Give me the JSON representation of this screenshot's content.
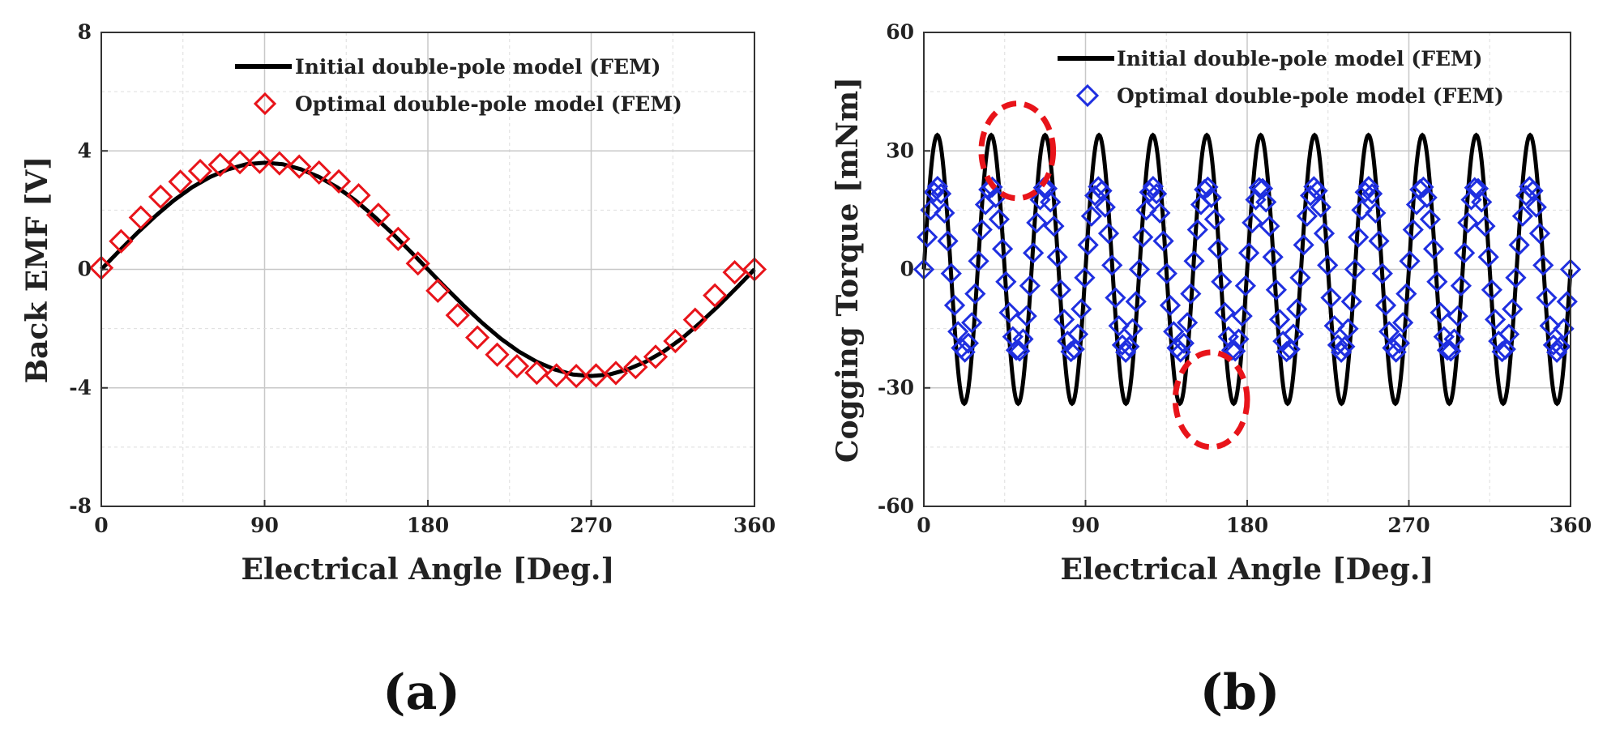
{
  "figure": {
    "caption_a": "(a)",
    "caption_b": "(b)"
  },
  "chart_data": [
    {
      "id": "a",
      "type": "line",
      "title": "",
      "xlabel": "Electrical Angle [Deg.]",
      "ylabel": "Back EMF [V]",
      "xlim": [
        0,
        360
      ],
      "ylim": [
        -8,
        8
      ],
      "xticks": [
        "0",
        "90",
        "180",
        "270",
        "360"
      ],
      "yticks": [
        "8",
        "4",
        "0",
        "-4",
        "-8"
      ],
      "grid": true,
      "legend_position": "top-right",
      "series": [
        {
          "name": "Initial double-pole model (FEM)",
          "style": "line",
          "color": "#000000",
          "x": [
            0,
            10,
            20,
            30,
            40,
            50,
            60,
            70,
            80,
            90,
            100,
            110,
            120,
            130,
            140,
            150,
            160,
            170,
            180,
            190,
            200,
            210,
            220,
            230,
            240,
            250,
            260,
            270,
            280,
            290,
            300,
            310,
            320,
            330,
            340,
            350,
            360
          ],
          "y": [
            0,
            0.63,
            1.24,
            1.81,
            2.33,
            2.77,
            3.12,
            3.38,
            3.55,
            3.6,
            3.55,
            3.38,
            3.12,
            2.77,
            2.33,
            1.81,
            1.24,
            0.63,
            0,
            -0.63,
            -1.24,
            -1.81,
            -2.33,
            -2.77,
            -3.12,
            -3.38,
            -3.55,
            -3.6,
            -3.55,
            -3.38,
            -3.12,
            -2.77,
            -2.33,
            -1.81,
            -1.24,
            -0.63,
            0
          ]
        },
        {
          "name": "Optimal double-pole model (FEM)",
          "style": "markers",
          "marker": "diamond",
          "color": "#e8141a",
          "x": [
            0,
            10.9,
            21.8,
            32.7,
            43.6,
            54.5,
            65.5,
            76.4,
            87.3,
            98.2,
            109.1,
            120,
            130.9,
            141.8,
            152.7,
            163.6,
            174.5,
            185.5,
            196.4,
            207.3,
            218.2,
            229.1,
            240,
            250.9,
            261.8,
            272.7,
            283.6,
            294.5,
            305.5,
            316.4,
            327.3,
            338.2,
            349.1,
            360
          ],
          "y": [
            0.05,
            0.95,
            1.75,
            2.45,
            2.96,
            3.32,
            3.53,
            3.62,
            3.63,
            3.58,
            3.47,
            3.27,
            2.97,
            2.5,
            1.84,
            1.03,
            0.2,
            -0.72,
            -1.55,
            -2.3,
            -2.88,
            -3.27,
            -3.49,
            -3.58,
            -3.6,
            -3.58,
            -3.5,
            -3.3,
            -2.95,
            -2.42,
            -1.7,
            -0.88,
            -0.1,
            0.0
          ]
        }
      ]
    },
    {
      "id": "b",
      "type": "line",
      "title": "",
      "xlabel": "Electrical Angle [Deg.]",
      "ylabel": "Cogging Torque [mNm]",
      "xlim": [
        0,
        360
      ],
      "ylim": [
        -60,
        60
      ],
      "xticks": [
        "0",
        "90",
        "180",
        "270",
        "360"
      ],
      "yticks": [
        "60",
        "30",
        "0",
        "-30",
        "-60"
      ],
      "grid": true,
      "legend_position": "top-right",
      "series": [
        {
          "name": "Initial double-pole model (FEM)",
          "style": "line",
          "color": "#000000",
          "amplitude": 34,
          "period": 30,
          "x": [
            0,
            7.5,
            15,
            22.5,
            30,
            37.5,
            45,
            52.5,
            60,
            67.5,
            75,
            82.5,
            90,
            97.5,
            105,
            112.5,
            120,
            127.5,
            135,
            142.5,
            150,
            157.5,
            165,
            172.5,
            180,
            187.5,
            195,
            202.5,
            210,
            217.5,
            225,
            232.5,
            240,
            247.5,
            255,
            262.5,
            270,
            277.5,
            285,
            292.5,
            300,
            307.5,
            315,
            322.5,
            330,
            337.5,
            345,
            352.5,
            360
          ],
          "y": [
            0,
            34,
            0,
            -34,
            0,
            34,
            0,
            -34,
            0,
            34,
            0,
            -34,
            0,
            34,
            0,
            -34,
            0,
            34,
            0,
            -34,
            0,
            34,
            0,
            -34,
            0,
            34,
            0,
            -34,
            0,
            34,
            0,
            -34,
            0,
            34,
            0,
            -34,
            0,
            34,
            0,
            -34,
            0,
            34,
            0,
            -34,
            0,
            34,
            0,
            -34,
            0
          ]
        },
        {
          "name": "Optimal double-pole model (FEM)",
          "style": "markers",
          "marker": "diamond",
          "color": "#1f2fe0",
          "amplitude": 21,
          "period": 30,
          "x": [
            0,
            7.5,
            15,
            22.5,
            30,
            37.5,
            45,
            52.5,
            60,
            67.5,
            75,
            82.5,
            90,
            97.5,
            105,
            112.5,
            120,
            127.5,
            135,
            142.5,
            150,
            157.5,
            165,
            172.5,
            180,
            187.5,
            195,
            202.5,
            210,
            217.5,
            225,
            232.5,
            240,
            247.5,
            255,
            262.5,
            270,
            277.5,
            285,
            292.5,
            300,
            307.5,
            315,
            322.5,
            330,
            337.5,
            345,
            352.5,
            360
          ],
          "y": [
            0,
            21,
            0,
            -21,
            0,
            21,
            0,
            -21,
            0,
            21,
            0,
            -21,
            0,
            21,
            0,
            -21,
            0,
            21,
            0,
            -21,
            0,
            21,
            0,
            -21,
            0,
            21,
            0,
            -21,
            0,
            21,
            0,
            -21,
            0,
            21,
            0,
            -21,
            0,
            21,
            0,
            -21,
            0,
            21,
            0,
            -21,
            0,
            21,
            0,
            -21,
            0
          ]
        }
      ],
      "annotations": [
        {
          "type": "dashed-ellipse",
          "color": "#e8141a",
          "center": [
            52,
            30
          ],
          "radius": [
            20,
            12
          ]
        },
        {
          "type": "dashed-ellipse",
          "color": "#e8141a",
          "center": [
            160,
            -33
          ],
          "radius": [
            20,
            12
          ]
        }
      ]
    }
  ]
}
